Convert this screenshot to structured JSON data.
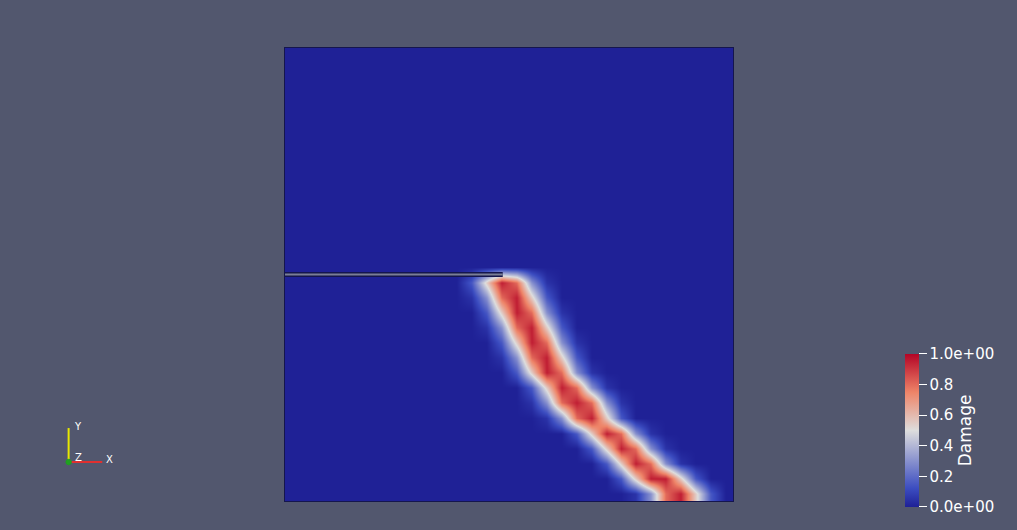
{
  "chart_data": {
    "type": "heatmap",
    "tick_labels": false,
    "xlim": [
      0,
      1
    ],
    "ylim": [
      0,
      1
    ],
    "notch": {
      "x": [
        0,
        0.486
      ],
      "y": 0.5
    },
    "axes_triad": {
      "x": "X",
      "y": "Y",
      "z": "Z"
    },
    "colorbar": {
      "title": "Damage",
      "range": [
        0,
        1
      ],
      "ticks": [
        {
          "value": 0,
          "label": "0.0e+00"
        },
        0.2,
        0.4,
        0.6,
        0.8,
        {
          "value": 1,
          "label": "1.0e+00"
        }
      ]
    },
    "z": [
      [
        0,
        0,
        0,
        0,
        0,
        0,
        0,
        0,
        0,
        0,
        0,
        0,
        0,
        0,
        0,
        0,
        0,
        0,
        0,
        0,
        0,
        0,
        0,
        0.05,
        0.3,
        0.8,
        0.95,
        0.55,
        0.15,
        0
      ],
      [
        0,
        0,
        0,
        0,
        0,
        0,
        0,
        0,
        0,
        0,
        0,
        0,
        0,
        0,
        0,
        0,
        0,
        0,
        0,
        0,
        0,
        0,
        0.15,
        0.55,
        0.95,
        0.95,
        0.55,
        0.15,
        0,
        0
      ],
      [
        0,
        0,
        0,
        0,
        0,
        0,
        0,
        0,
        0,
        0,
        0,
        0,
        0,
        0,
        0,
        0,
        0,
        0,
        0,
        0,
        0,
        0.15,
        0.55,
        0.95,
        0.8,
        0.3,
        0.05,
        0,
        0,
        0
      ],
      [
        0,
        0,
        0,
        0,
        0,
        0,
        0,
        0,
        0,
        0,
        0,
        0,
        0,
        0,
        0,
        0,
        0,
        0,
        0,
        0,
        0.15,
        0.55,
        0.95,
        0.8,
        0.3,
        0.05,
        0,
        0,
        0,
        0
      ],
      [
        0,
        0,
        0,
        0,
        0,
        0,
        0,
        0,
        0,
        0,
        0,
        0,
        0,
        0,
        0,
        0,
        0,
        0,
        0,
        0.15,
        0.55,
        0.95,
        0.8,
        0.3,
        0.05,
        0,
        0,
        0,
        0,
        0
      ],
      [
        0,
        0,
        0,
        0,
        0,
        0,
        0,
        0,
        0,
        0,
        0,
        0,
        0,
        0,
        0,
        0,
        0,
        0.05,
        0.3,
        0.8,
        0.95,
        0.55,
        0.15,
        0,
        0,
        0,
        0,
        0,
        0,
        0
      ],
      [
        0,
        0,
        0,
        0,
        0,
        0,
        0,
        0,
        0,
        0,
        0,
        0,
        0,
        0,
        0,
        0,
        0.05,
        0.3,
        0.8,
        0.95,
        0.8,
        0.3,
        0.05,
        0,
        0,
        0,
        0,
        0,
        0,
        0
      ],
      [
        0,
        0,
        0,
        0,
        0,
        0,
        0,
        0,
        0,
        0,
        0,
        0,
        0,
        0,
        0,
        0,
        0.15,
        0.55,
        0.95,
        0.8,
        0.3,
        0.05,
        0,
        0,
        0,
        0,
        0,
        0,
        0,
        0
      ],
      [
        0,
        0,
        0,
        0,
        0,
        0,
        0,
        0,
        0,
        0,
        0,
        0,
        0,
        0,
        0,
        0.15,
        0.55,
        0.95,
        0.8,
        0.3,
        0.05,
        0,
        0,
        0,
        0,
        0,
        0,
        0,
        0,
        0
      ],
      [
        0,
        0,
        0,
        0,
        0,
        0,
        0,
        0,
        0,
        0,
        0,
        0,
        0,
        0,
        0.05,
        0.3,
        0.8,
        0.95,
        0.55,
        0.15,
        0,
        0,
        0,
        0,
        0,
        0,
        0,
        0,
        0,
        0
      ],
      [
        0,
        0,
        0,
        0,
        0,
        0,
        0,
        0,
        0,
        0,
        0,
        0,
        0,
        0,
        0.15,
        0.55,
        0.95,
        0.8,
        0.3,
        0.05,
        0,
        0,
        0,
        0,
        0,
        0,
        0,
        0,
        0,
        0
      ],
      [
        0,
        0,
        0,
        0,
        0,
        0,
        0,
        0,
        0,
        0,
        0,
        0,
        0,
        0.05,
        0.3,
        0.8,
        0.95,
        0.55,
        0.15,
        0,
        0,
        0,
        0,
        0,
        0,
        0,
        0,
        0,
        0,
        0
      ],
      [
        0,
        0,
        0,
        0,
        0,
        0,
        0,
        0,
        0,
        0,
        0,
        0,
        0,
        0.15,
        0.55,
        0.95,
        0.8,
        0.3,
        0.05,
        0,
        0,
        0,
        0,
        0,
        0,
        0,
        0,
        0,
        0,
        0
      ],
      [
        0,
        0,
        0,
        0,
        0,
        0,
        0,
        0,
        0,
        0,
        0,
        0,
        0.05,
        0.3,
        0.8,
        0.95,
        0.55,
        0.15,
        0,
        0,
        0,
        0,
        0,
        0,
        0,
        0,
        0,
        0,
        0,
        0
      ],
      [
        0,
        0,
        0,
        0,
        0,
        0,
        0,
        0,
        0,
        0,
        0,
        0,
        0.15,
        0.55,
        0.95,
        0.8,
        0.3,
        0.05,
        0,
        0,
        0,
        0,
        0,
        0,
        0,
        0,
        0,
        0,
        0,
        0
      ],
      [
        0,
        0,
        0,
        0,
        0,
        0,
        0,
        0,
        0,
        0,
        0,
        0,
        0,
        0,
        0,
        0,
        0,
        0,
        0,
        0,
        0,
        0,
        0,
        0,
        0,
        0,
        0,
        0,
        0,
        0
      ],
      [
        0,
        0,
        0,
        0,
        0,
        0,
        0,
        0,
        0,
        0,
        0,
        0,
        0,
        0,
        0,
        0,
        0,
        0,
        0,
        0,
        0,
        0,
        0,
        0,
        0,
        0,
        0,
        0,
        0,
        0
      ],
      [
        0,
        0,
        0,
        0,
        0,
        0,
        0,
        0,
        0,
        0,
        0,
        0,
        0,
        0,
        0,
        0,
        0,
        0,
        0,
        0,
        0,
        0,
        0,
        0,
        0,
        0,
        0,
        0,
        0,
        0
      ],
      [
        0,
        0,
        0,
        0,
        0,
        0,
        0,
        0,
        0,
        0,
        0,
        0,
        0,
        0,
        0,
        0,
        0,
        0,
        0,
        0,
        0,
        0,
        0,
        0,
        0,
        0,
        0,
        0,
        0,
        0
      ],
      [
        0,
        0,
        0,
        0,
        0,
        0,
        0,
        0,
        0,
        0,
        0,
        0,
        0,
        0,
        0,
        0,
        0,
        0,
        0,
        0,
        0,
        0,
        0,
        0,
        0,
        0,
        0,
        0,
        0,
        0
      ],
      [
        0,
        0,
        0,
        0,
        0,
        0,
        0,
        0,
        0,
        0,
        0,
        0,
        0,
        0,
        0,
        0,
        0,
        0,
        0,
        0,
        0,
        0,
        0,
        0,
        0,
        0,
        0,
        0,
        0,
        0
      ],
      [
        0,
        0,
        0,
        0,
        0,
        0,
        0,
        0,
        0,
        0,
        0,
        0,
        0,
        0,
        0,
        0,
        0,
        0,
        0,
        0,
        0,
        0,
        0,
        0,
        0,
        0,
        0,
        0,
        0,
        0
      ],
      [
        0,
        0,
        0,
        0,
        0,
        0,
        0,
        0,
        0,
        0,
        0,
        0,
        0,
        0,
        0,
        0,
        0,
        0,
        0,
        0,
        0,
        0,
        0,
        0,
        0,
        0,
        0,
        0,
        0,
        0
      ],
      [
        0,
        0,
        0,
        0,
        0,
        0,
        0,
        0,
        0,
        0,
        0,
        0,
        0,
        0,
        0,
        0,
        0,
        0,
        0,
        0,
        0,
        0,
        0,
        0,
        0,
        0,
        0,
        0,
        0,
        0
      ],
      [
        0,
        0,
        0,
        0,
        0,
        0,
        0,
        0,
        0,
        0,
        0,
        0,
        0,
        0,
        0,
        0,
        0,
        0,
        0,
        0,
        0,
        0,
        0,
        0,
        0,
        0,
        0,
        0,
        0,
        0
      ],
      [
        0,
        0,
        0,
        0,
        0,
        0,
        0,
        0,
        0,
        0,
        0,
        0,
        0,
        0,
        0,
        0,
        0,
        0,
        0,
        0,
        0,
        0,
        0,
        0,
        0,
        0,
        0,
        0,
        0,
        0
      ],
      [
        0,
        0,
        0,
        0,
        0,
        0,
        0,
        0,
        0,
        0,
        0,
        0,
        0,
        0,
        0,
        0,
        0,
        0,
        0,
        0,
        0,
        0,
        0,
        0,
        0,
        0,
        0,
        0,
        0,
        0
      ],
      [
        0,
        0,
        0,
        0,
        0,
        0,
        0,
        0,
        0,
        0,
        0,
        0,
        0,
        0,
        0,
        0,
        0,
        0,
        0,
        0,
        0,
        0,
        0,
        0,
        0,
        0,
        0,
        0,
        0,
        0
      ],
      [
        0,
        0,
        0,
        0,
        0,
        0,
        0,
        0,
        0,
        0,
        0,
        0,
        0,
        0,
        0,
        0,
        0,
        0,
        0,
        0,
        0,
        0,
        0,
        0,
        0,
        0,
        0,
        0,
        0,
        0
      ],
      [
        0,
        0,
        0,
        0,
        0,
        0,
        0,
        0,
        0,
        0,
        0,
        0,
        0,
        0,
        0,
        0,
        0,
        0,
        0,
        0,
        0,
        0,
        0,
        0,
        0,
        0,
        0,
        0,
        0,
        0
      ]
    ]
  }
}
